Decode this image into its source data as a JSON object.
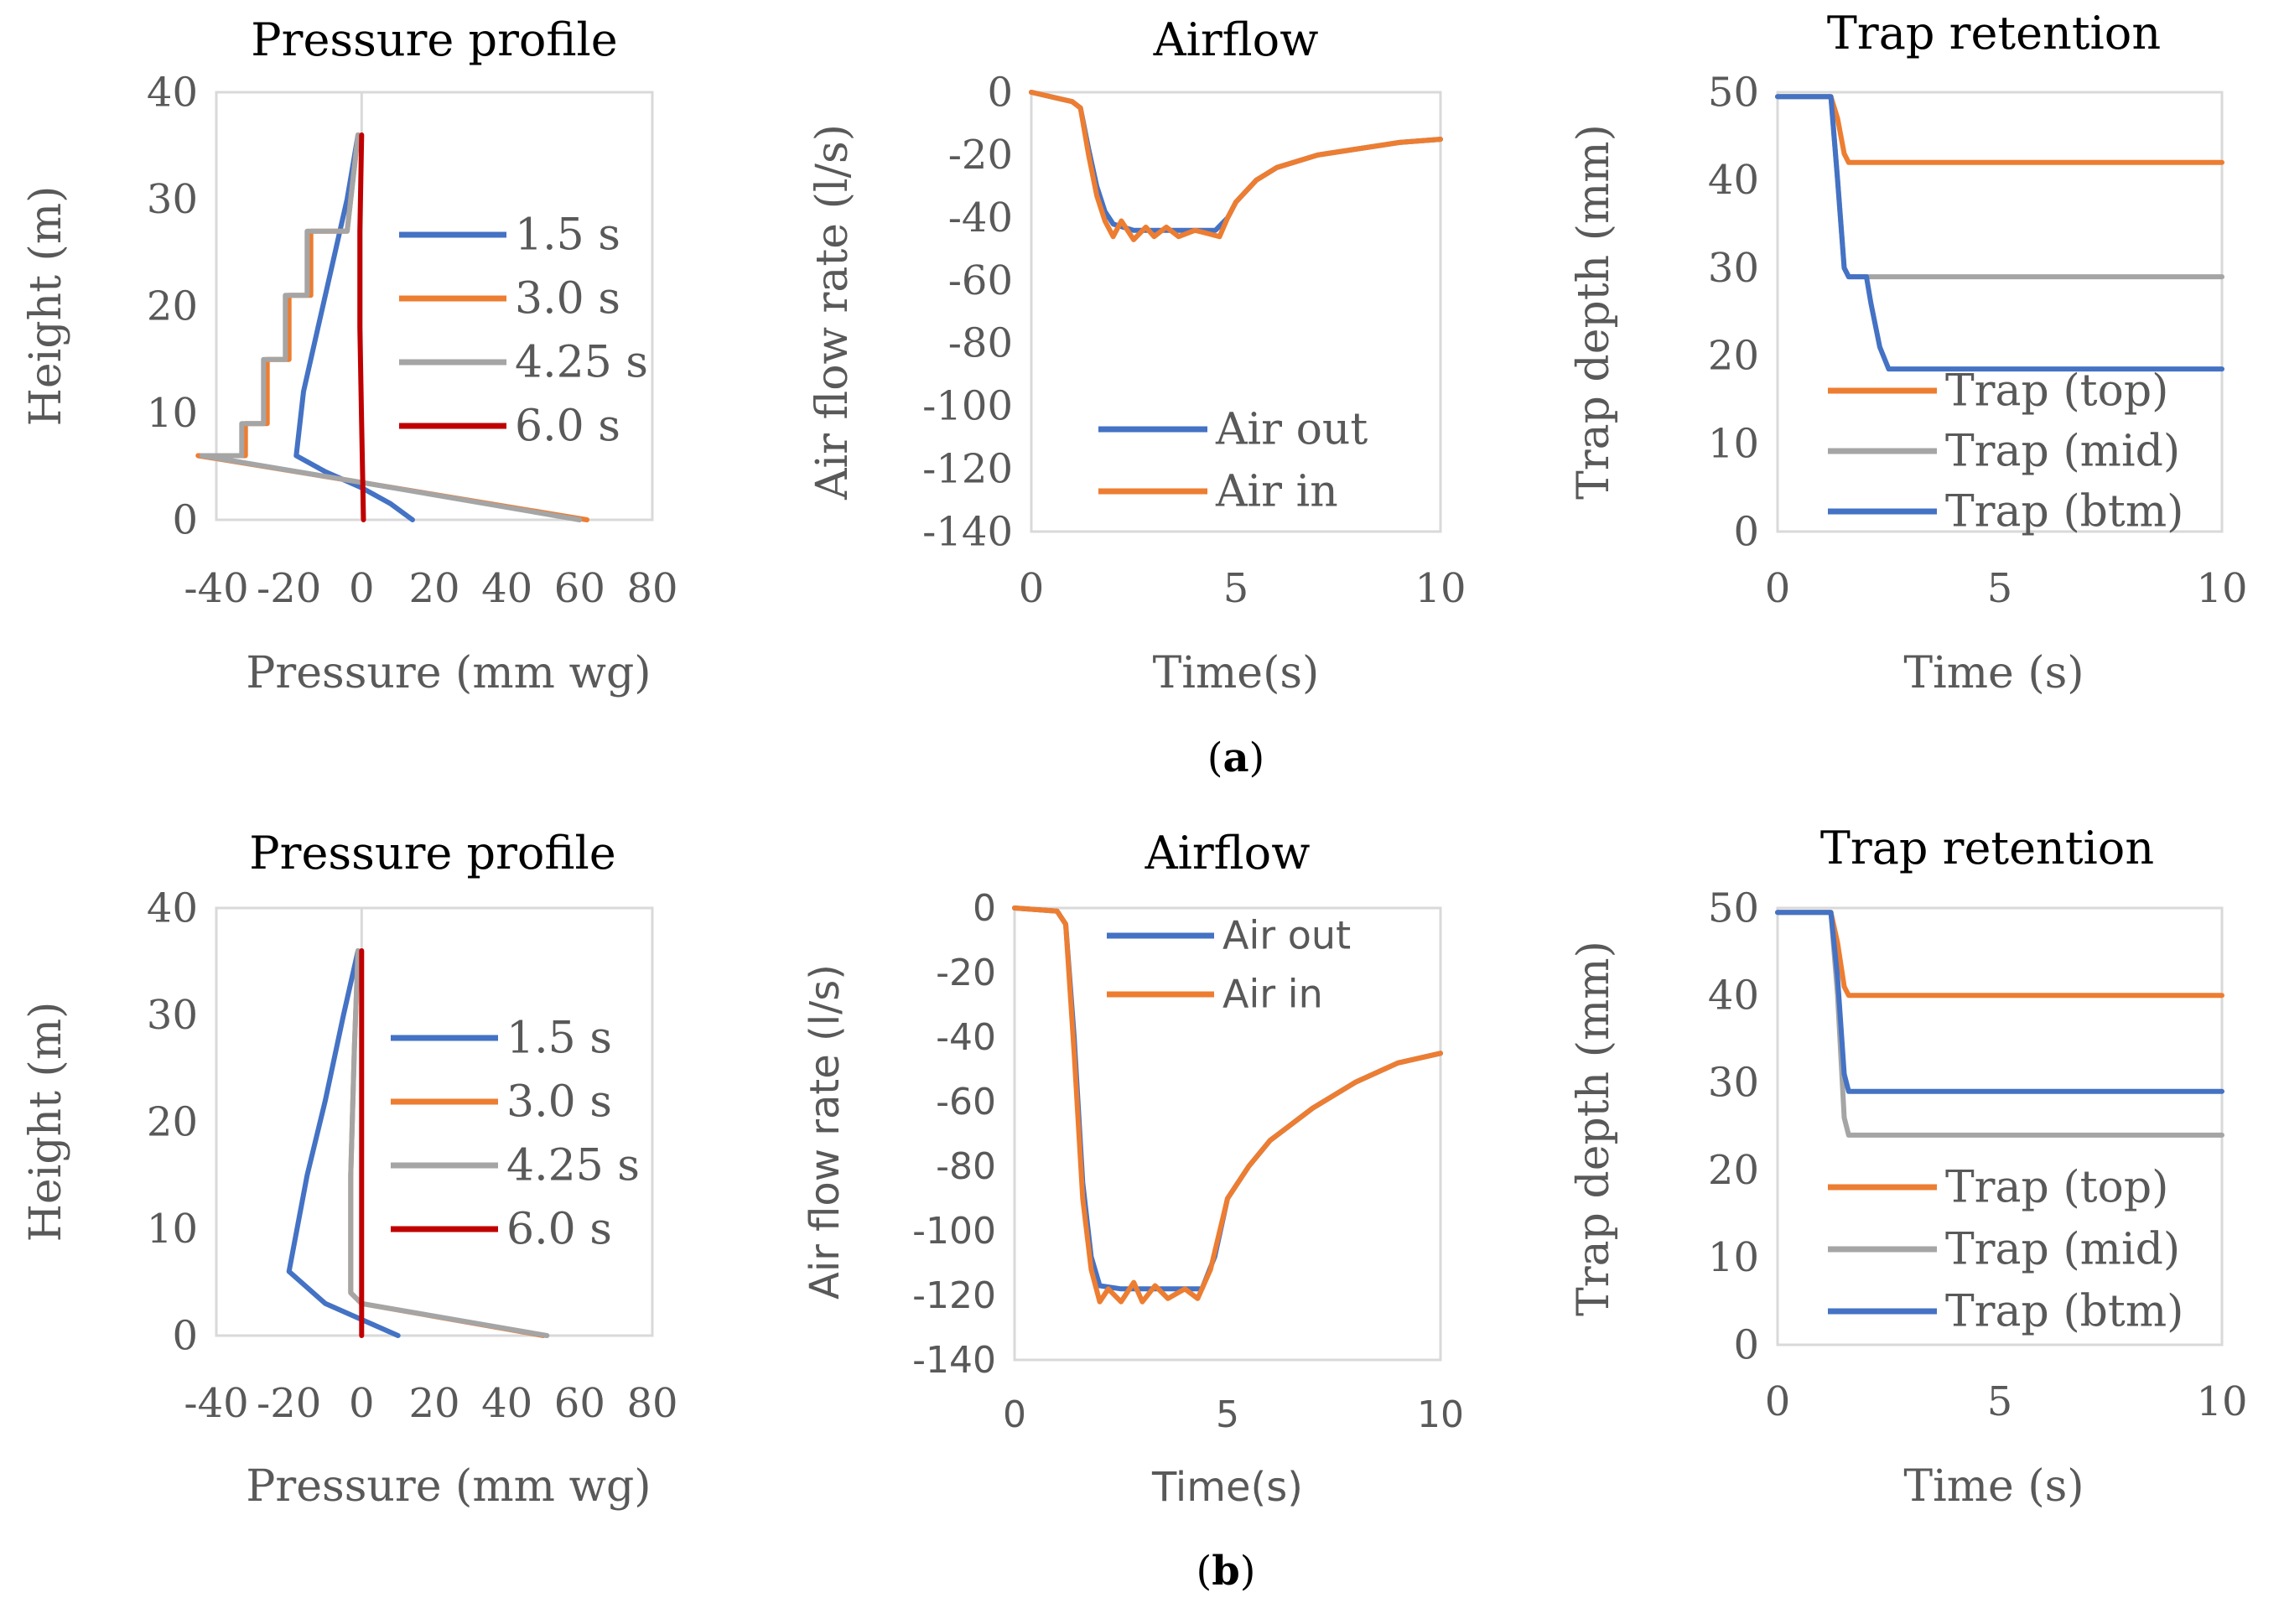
{
  "colors": {
    "blue": "#4472C4",
    "orange": "#ED7D31",
    "gray": "#A5A5A5",
    "red": "#C00000",
    "axis": "#595959",
    "frame": "#D9D9D9"
  },
  "figure": {
    "rows": [
      {
        "label_prefix": "(",
        "label_letter": "a",
        "label_suffix": ")"
      },
      {
        "label_prefix": "(",
        "label_letter": "b",
        "label_suffix": ")"
      }
    ]
  },
  "chart_data": [
    {
      "id": "a-pressure",
      "type": "line",
      "title": "Pressure profile",
      "xlabel": "Pressure (mm wg)",
      "ylabel": "Height (m)",
      "xlim": [
        -40,
        80
      ],
      "ylim": [
        0,
        40
      ],
      "xticks": [
        -40,
        -20,
        0,
        20,
        40,
        60,
        80
      ],
      "yticks": [
        0,
        10,
        20,
        30,
        40
      ],
      "xtick_labels": [
        "-40",
        "-20",
        "0",
        "20",
        "40",
        "60",
        "80"
      ],
      "ytick_labels": [
        "0",
        "10",
        "20",
        "30",
        "40"
      ],
      "series": [
        {
          "name": "1.5 s",
          "color_key": "blue",
          "x": [
            14,
            8,
            0,
            -10,
            -18,
            -16,
            -12,
            -8,
            -4,
            -1
          ],
          "y": [
            0,
            1.5,
            3,
            4.5,
            6,
            12,
            18,
            24,
            30,
            36
          ]
        },
        {
          "name": "3.0 s",
          "color_key": "orange",
          "x": [
            62,
            0,
            -45,
            -32,
            -32,
            -26,
            -26,
            -20,
            -20,
            -14,
            -14,
            -4,
            -1
          ],
          "y": [
            0,
            3.5,
            6,
            6,
            9,
            9,
            15,
            15,
            21,
            21,
            27,
            27,
            36
          ]
        },
        {
          "name": "4.25 s",
          "color_key": "gray",
          "x": [
            60,
            0,
            -44,
            -33,
            -33,
            -27,
            -27,
            -21,
            -21,
            -15,
            -15,
            -4,
            -1
          ],
          "y": [
            0,
            3.5,
            6,
            6,
            9,
            9,
            15,
            15,
            21,
            21,
            27,
            27,
            36
          ]
        },
        {
          "name": "6.0 s",
          "color_key": "red",
          "x": [
            0.5,
            0,
            -0.5,
            -0.5,
            0
          ],
          "y": [
            0,
            9,
            18,
            27,
            36
          ]
        }
      ]
    },
    {
      "id": "a-airflow",
      "type": "line",
      "title": "Airflow",
      "xlabel": "Time(s)",
      "ylabel": "Air flow rate (l/s)",
      "xlim": [
        0,
        10
      ],
      "ylim": [
        -140,
        0
      ],
      "xticks": [
        0,
        5,
        10
      ],
      "yticks": [
        0,
        -20,
        -40,
        -60,
        -80,
        -100,
        -120,
        -140
      ],
      "xtick_labels": [
        "0",
        "5",
        "10"
      ],
      "ytick_labels": [
        "0",
        "-20",
        "-40",
        "-60",
        "-80",
        "-100",
        "-120",
        "-140"
      ],
      "series": [
        {
          "name": "Air out",
          "color_key": "blue",
          "x": [
            0,
            1,
            1.2,
            1.4,
            1.6,
            1.8,
            2,
            2.5,
            3,
            3.5,
            4,
            4.5,
            4.8,
            5,
            5.5,
            6,
            7,
            8,
            9,
            10
          ],
          "y": [
            0,
            -3,
            -5,
            -18,
            -30,
            -38,
            -42,
            -44,
            -44,
            -44,
            -44,
            -44,
            -40,
            -35,
            -28,
            -24,
            -20,
            -18,
            -16,
            -15
          ]
        },
        {
          "name": "Air in",
          "color_key": "orange",
          "x": [
            0,
            1,
            1.2,
            1.4,
            1.6,
            1.8,
            2,
            2.2,
            2.5,
            2.8,
            3,
            3.3,
            3.6,
            4,
            4.3,
            4.6,
            4.8,
            5,
            5.5,
            6,
            7,
            8,
            9,
            10
          ],
          "y": [
            0,
            -3,
            -5,
            -20,
            -33,
            -41,
            -46,
            -41,
            -47,
            -43,
            -46,
            -43,
            -46,
            -44,
            -45,
            -46,
            -40,
            -35,
            -28,
            -24,
            -20,
            -18,
            -16,
            -15
          ]
        }
      ]
    },
    {
      "id": "a-trap",
      "type": "line",
      "title": "Trap retention",
      "xlabel": "Time (s)",
      "ylabel": "Trap depth (mm)",
      "xlim": [
        0,
        10
      ],
      "ylim": [
        0,
        50
      ],
      "xticks": [
        0,
        5,
        10
      ],
      "yticks": [
        0,
        10,
        20,
        30,
        40,
        50
      ],
      "xtick_labels": [
        "0",
        "5",
        "10"
      ],
      "ytick_labels": [
        "0",
        "10",
        "20",
        "30",
        "40",
        "50"
      ],
      "series": [
        {
          "name": "Trap (top)",
          "color_key": "orange",
          "x": [
            0,
            1.2,
            1.35,
            1.5,
            1.6,
            10
          ],
          "y": [
            49.5,
            49.5,
            47,
            43,
            42,
            42
          ]
        },
        {
          "name": "Trap (mid)",
          "color_key": "gray",
          "x": [
            0,
            1.2,
            1.35,
            1.5,
            1.6,
            10
          ],
          "y": [
            49.5,
            49.5,
            40,
            30,
            29,
            29
          ]
        },
        {
          "name": "Trap (btm)",
          "color_key": "blue",
          "x": [
            0,
            1.2,
            1.35,
            1.5,
            1.6,
            2,
            2.1,
            2.3,
            2.5,
            10
          ],
          "y": [
            49.5,
            49.5,
            40,
            30,
            29,
            29,
            26,
            21,
            18.5,
            18.5
          ]
        }
      ]
    },
    {
      "id": "b-pressure",
      "type": "line",
      "title": "Pressure profile",
      "xlabel": "Pressure (mm wg)",
      "ylabel": "Height (m)",
      "xlim": [
        -40,
        80
      ],
      "ylim": [
        0,
        40
      ],
      "xticks": [
        -40,
        -20,
        0,
        20,
        40,
        60,
        80
      ],
      "yticks": [
        0,
        10,
        20,
        30,
        40
      ],
      "xtick_labels": [
        "-40",
        "-20",
        "0",
        "20",
        "40",
        "60",
        "80"
      ],
      "ytick_labels": [
        "0",
        "10",
        "20",
        "30",
        "40"
      ],
      "series": [
        {
          "name": "1.5 s",
          "color_key": "blue",
          "x": [
            10,
            0,
            -10,
            -20,
            -15,
            -10,
            -5,
            -1
          ],
          "y": [
            0,
            1.5,
            3,
            6,
            15,
            22,
            30,
            36
          ]
        },
        {
          "name": "3.0 s",
          "color_key": "orange",
          "x": [
            50,
            0,
            -3,
            -3,
            -2,
            -1
          ],
          "y": [
            0,
            3,
            4,
            15,
            27,
            36
          ]
        },
        {
          "name": "4.25 s",
          "color_key": "gray",
          "x": [
            51,
            0,
            -3,
            -3,
            -2,
            -1
          ],
          "y": [
            0,
            3,
            4,
            15,
            27,
            36
          ]
        },
        {
          "name": "6.0 s",
          "color_key": "red",
          "x": [
            0,
            0,
            0
          ],
          "y": [
            0,
            18,
            36
          ]
        }
      ]
    },
    {
      "id": "b-airflow",
      "type": "line",
      "title": "Airflow",
      "xlabel": "Time(s)",
      "ylabel": "Air flow rate (l/s)",
      "xlim": [
        0,
        10
      ],
      "ylim": [
        -140,
        0
      ],
      "xticks": [
        0,
        5,
        10
      ],
      "yticks": [
        0,
        -20,
        -40,
        -60,
        -80,
        -100,
        -120,
        -140
      ],
      "xtick_labels": [
        "0",
        "5",
        "10"
      ],
      "ytick_labels": [
        "0",
        "-20",
        "-40",
        "-60",
        "-80",
        "-100",
        "-120",
        "-140"
      ],
      "series": [
        {
          "name": "Air out",
          "color_key": "blue",
          "x": [
            0,
            1,
            1.2,
            1.4,
            1.6,
            1.8,
            2,
            2.5,
            3,
            3.5,
            4,
            4.4,
            4.7,
            5,
            5.5,
            6,
            7,
            8,
            9,
            10
          ],
          "y": [
            0,
            -1,
            -5,
            -40,
            -85,
            -108,
            -117,
            -118,
            -118,
            -118,
            -118,
            -118,
            -108,
            -90,
            -80,
            -72,
            -62,
            -54,
            -48,
            -45
          ]
        },
        {
          "name": "Air in",
          "color_key": "orange",
          "x": [
            0,
            1,
            1.2,
            1.4,
            1.6,
            1.8,
            2,
            2.2,
            2.5,
            2.8,
            3,
            3.3,
            3.6,
            4,
            4.3,
            4.6,
            5,
            5.5,
            6,
            7,
            8,
            9,
            10
          ],
          "y": [
            0,
            -1,
            -5,
            -45,
            -90,
            -112,
            -122,
            -118,
            -122,
            -116,
            -122,
            -117,
            -121,
            -118,
            -121,
            -112,
            -90,
            -80,
            -72,
            -62,
            -54,
            -48,
            -45
          ]
        }
      ]
    },
    {
      "id": "b-trap",
      "type": "line",
      "title": "Trap retention",
      "xlabel": "Time (s)",
      "ylabel": "Trap depth (mm)",
      "xlim": [
        0,
        10
      ],
      "ylim": [
        0,
        50
      ],
      "xticks": [
        0,
        5,
        10
      ],
      "yticks": [
        0,
        10,
        20,
        30,
        40,
        50
      ],
      "xtick_labels": [
        "0",
        "5",
        "10"
      ],
      "ytick_labels": [
        "0",
        "10",
        "20",
        "30",
        "40",
        "50"
      ],
      "series": [
        {
          "name": "Trap (top)",
          "color_key": "orange",
          "x": [
            0,
            1.2,
            1.35,
            1.5,
            1.6,
            10
          ],
          "y": [
            49.5,
            49.5,
            46,
            41,
            40,
            40
          ]
        },
        {
          "name": "Trap (mid)",
          "color_key": "gray",
          "x": [
            0,
            1.2,
            1.35,
            1.5,
            1.6,
            10
          ],
          "y": [
            49.5,
            49.5,
            40,
            26,
            24,
            24
          ]
        },
        {
          "name": "Trap (btm)",
          "color_key": "blue",
          "x": [
            0,
            1.2,
            1.35,
            1.5,
            1.6,
            10
          ],
          "y": [
            49.5,
            49.5,
            42,
            31,
            29,
            29
          ]
        }
      ]
    }
  ]
}
